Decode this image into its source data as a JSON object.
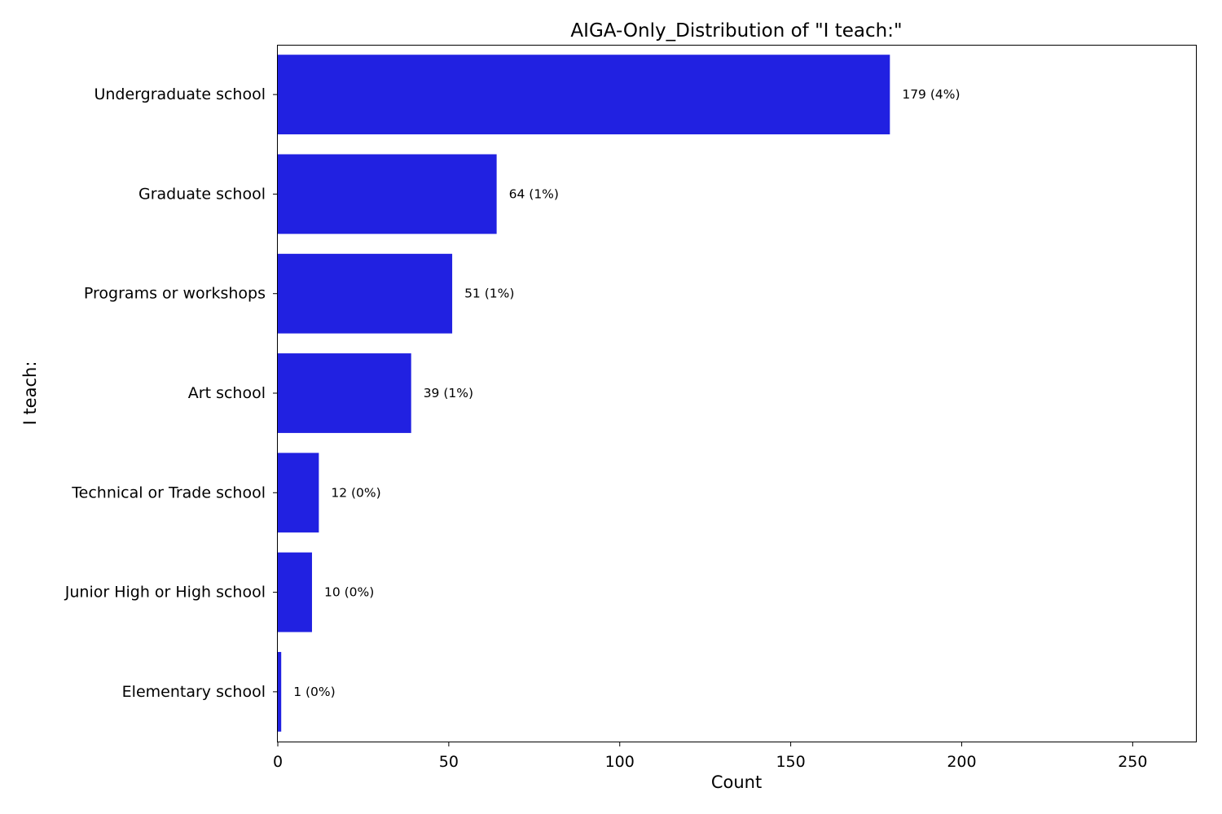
{
  "chart_data": {
    "type": "bar",
    "orientation": "horizontal",
    "title": "AIGA-Only_Distribution of \"I teach:\"",
    "xlabel": "Count",
    "ylabel": "I teach:",
    "categories": [
      "Undergraduate school",
      "Graduate school",
      "Programs or workshops",
      "Art school",
      "Technical or Trade school",
      "Junior High or High school",
      "Elementary school"
    ],
    "values": [
      179,
      64,
      51,
      39,
      12,
      10,
      1
    ],
    "data_labels": [
      "179 (4%)",
      "64 (1%)",
      "51 (1%)",
      "39 (1%)",
      "12 (0%)",
      "10 (0%)",
      "1 (0%)"
    ],
    "xlim": [
      0,
      268.5
    ],
    "xticks": [
      0,
      50,
      100,
      150,
      200,
      250
    ],
    "grid": false,
    "legend": "none",
    "bar_color": "#2121e1"
  }
}
